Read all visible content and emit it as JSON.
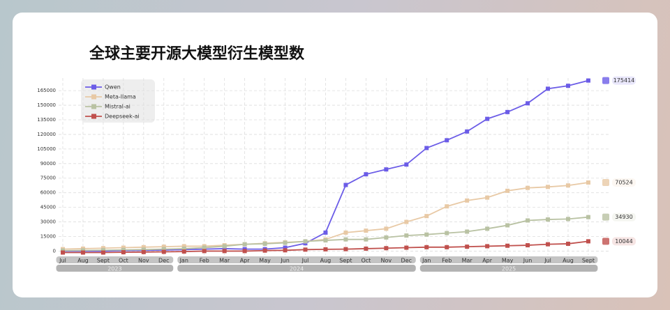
{
  "chart_data": {
    "type": "line",
    "title": "全球主要开源大模型衍生模型数",
    "categories": [
      "Jul",
      "Aug",
      "Sept",
      "Oct",
      "Nov",
      "Dec",
      "Jan",
      "Feb",
      "Mar",
      "Apr",
      "May",
      "Jun",
      "Jul",
      "Aug",
      "Sept",
      "Oct",
      "Nov",
      "Dec",
      "Jan",
      "Feb",
      "Mar",
      "Apr",
      "May",
      "Jun",
      "Jul",
      "Aug",
      "Sept"
    ],
    "years": [
      "2023",
      "2024",
      "2025"
    ],
    "series": [
      {
        "name": "Qwen",
        "color": "#6b5ce7",
        "values": [
          0,
          0,
          0,
          500,
          800,
          1000,
          1500,
          2000,
          2500,
          2000,
          2000,
          3500,
          8000,
          19000,
          68000,
          79000,
          84000,
          89000,
          106000,
          114000,
          123000,
          136000,
          143000,
          152000,
          167000,
          170000,
          175414
        ]
      },
      {
        "name": "Meta-llama",
        "color": "#e8c9a5",
        "values": [
          2000,
          2500,
          3000,
          3500,
          4000,
          4500,
          5000,
          5000,
          6000,
          7000,
          8000,
          9000,
          10000,
          12000,
          19000,
          21000,
          23000,
          30000,
          36000,
          46000,
          52000,
          55000,
          62000,
          65000,
          66000,
          67500,
          70524
        ]
      },
      {
        "name": "Mistral-ai",
        "color": "#b9c2a3",
        "values": [
          500,
          700,
          900,
          1200,
          1500,
          2000,
          2500,
          3500,
          5000,
          7000,
          7500,
          8500,
          10000,
          11000,
          12000,
          12000,
          14000,
          16000,
          17000,
          18500,
          20000,
          23000,
          26500,
          31500,
          32500,
          33000,
          34930
        ]
      },
      {
        "name": "Deepseek-ai",
        "color": "#c0504d",
        "values": [
          -1500,
          -1500,
          -1500,
          -1200,
          -1000,
          -800,
          -500,
          0,
          0,
          0,
          500,
          800,
          1500,
          1800,
          2000,
          2500,
          3000,
          3500,
          4000,
          4000,
          4500,
          5000,
          5500,
          6000,
          7000,
          7500,
          10044
        ]
      }
    ],
    "ylim": [
      -4000,
      178000
    ],
    "yticks": [
      0,
      15000,
      30000,
      45000,
      60000,
      75000,
      90000,
      105000,
      120000,
      135000,
      150000,
      165000
    ],
    "grid": true
  }
}
